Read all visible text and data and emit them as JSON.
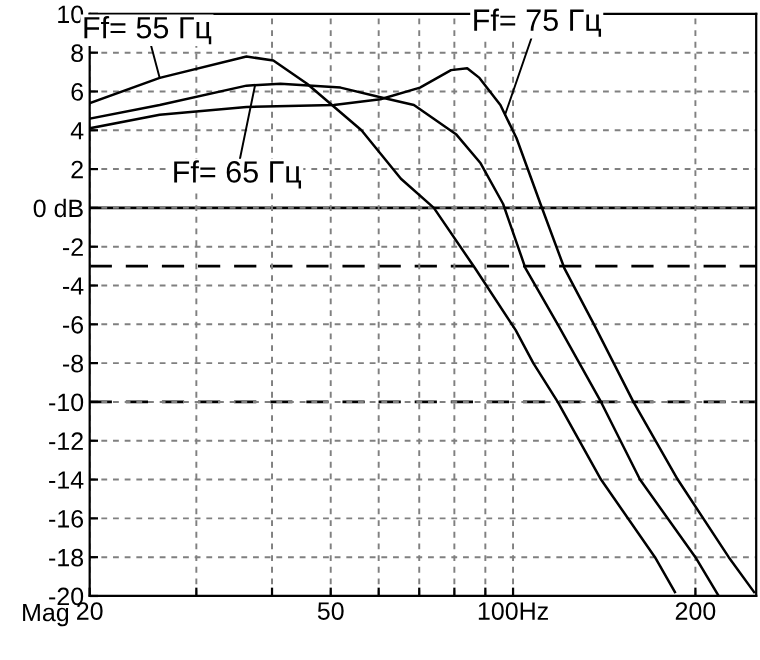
{
  "chart_data": {
    "type": "line",
    "xlabel": "Mag",
    "log": "x",
    "grid": true,
    "marker": "none",
    "line_style": "solid",
    "xlim": [
      20,
      252
    ],
    "xticks": [
      20,
      {
        "value": 30,
        "label": null
      },
      {
        "value": 40,
        "label": null
      },
      50,
      {
        "value": 60,
        "label": null
      },
      {
        "value": 70,
        "label": null
      },
      {
        "value": 80,
        "label": null
      },
      {
        "value": 90,
        "label": null
      },
      {
        "value": 100,
        "label": "100Hz"
      },
      200
    ],
    "ylim": [
      -20,
      10
    ],
    "yticks": [
      -20,
      -18,
      -16,
      -14,
      -12,
      -10,
      -8,
      -6,
      -4,
      -2,
      {
        "value": 0,
        "label": "0 dB"
      },
      2,
      4,
      6,
      8,
      10
    ],
    "series": [
      {
        "color": "#000000",
        "x": [
          20,
          26.1,
          36.3,
          40.2,
          45.7,
          56.2,
          65.3,
          74,
          86.5,
          101,
          108,
          118.5,
          139.7,
          171.5,
          185
        ],
        "values": [
          5.4,
          6.7,
          7.8,
          7.6,
          6.4,
          4.0,
          1.5,
          0,
          -3.1,
          -6.3,
          -8,
          -10,
          -14,
          -18,
          -19.8
        ]
      },
      {
        "color": "#000000",
        "x": [
          20,
          26.1,
          36.3,
          41.3,
          51.9,
          60.4,
          68.6,
          80.5,
          88.4,
          96.3,
          104.8,
          118.5,
          139.7,
          162,
          200,
          218.5
        ],
        "values": [
          4.6,
          5.3,
          6.3,
          6.4,
          6.2,
          5.7,
          5.3,
          3.8,
          2.3,
          0.2,
          -3.1,
          -6,
          -10,
          -14,
          -18,
          -20
        ]
      },
      {
        "color": "#000000",
        "x": [
          20,
          26.1,
          36.3,
          50.6,
          60.4,
          70.2,
          79,
          84,
          88,
          95.3,
          101.3,
          111,
          121.5,
          136,
          158,
          187,
          227,
          250
        ],
        "values": [
          4.1,
          4.8,
          5.2,
          5.3,
          5.6,
          6.2,
          7.1,
          7.2,
          6.7,
          5.3,
          3.6,
          0.2,
          -3.1,
          -6,
          -10,
          -14,
          -18,
          -19.8
        ]
      }
    ],
    "ref_lines": [
      {
        "axis": "y",
        "value": 0,
        "color": "#000000",
        "line_style": "solid"
      },
      {
        "axis": "y",
        "value": -3,
        "color": "#000000",
        "line_style": "dashed"
      },
      {
        "axis": "y",
        "value": -10,
        "color": "#000000",
        "line_style": "dashed"
      }
    ],
    "annotations": [
      {
        "text": "Ff= 55 Гц",
        "x": 26.1,
        "y": 6.7
      },
      {
        "text": "Ff= 65 Гц",
        "x": 37.5,
        "y": 6.32
      },
      {
        "text": "Ff= 75 Гц",
        "x": 97,
        "y": 4.8
      }
    ]
  }
}
